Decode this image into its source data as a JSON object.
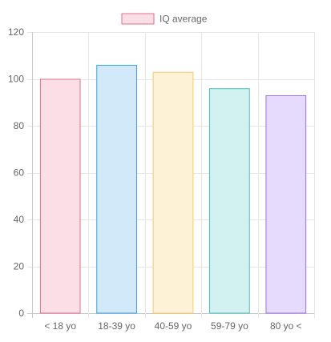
{
  "chart_data": {
    "type": "bar",
    "categories": [
      "< 18 yo",
      "18-39 yo",
      "40-59 yo",
      "59-79 yo",
      "80 yo <"
    ],
    "series": [
      {
        "name": "IQ average",
        "values": [
          100,
          106,
          103,
          96,
          93
        ]
      }
    ],
    "bar_fill_colors": [
      "#fbdee6",
      "#d2e9f9",
      "#fef2d6",
      "#d2f1f1",
      "#e6dafd"
    ],
    "bar_border_colors": [
      "#e2708c",
      "#3aa0e6",
      "#f8cc67",
      "#4cc0c0",
      "#9c6df8"
    ],
    "legend_fill_color": "#fbdee6",
    "legend_border_color": "#e2708c",
    "legend_position": "top-center",
    "ylim": [
      0,
      120
    ],
    "yticks": [
      0,
      20,
      40,
      60,
      80,
      100,
      120
    ],
    "grid": true,
    "title": "",
    "xlabel": "",
    "ylabel": ""
  }
}
